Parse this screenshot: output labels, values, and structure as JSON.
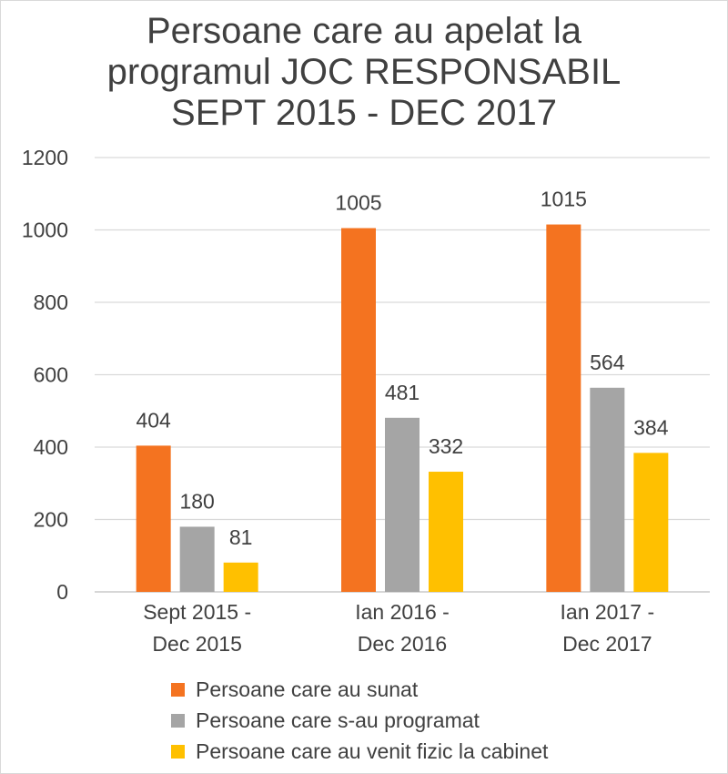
{
  "chart_data": {
    "type": "bar",
    "title": [
      "Persoane care au apelat la",
      "programul JOC RESPONSABIL",
      "SEPT 2015 - DEC  2017"
    ],
    "categories": [
      [
        "Sept 2015 -",
        "Dec 2015"
      ],
      [
        "Ian 2016 -",
        "Dec 2016"
      ],
      [
        "Ian 2017 -",
        "Dec 2017"
      ]
    ],
    "series": [
      {
        "name": "Persoane care au sunat",
        "values": [
          404,
          1005,
          1015
        ],
        "color": "#f47320"
      },
      {
        "name": "Persoane care s-au programat",
        "values": [
          180,
          481,
          564
        ],
        "color": "#a5a5a5"
      },
      {
        "name": "Persoane care au venit fizic la cabinet",
        "values": [
          81,
          332,
          384
        ],
        "color": "#ffc000"
      }
    ],
    "ylim": [
      0,
      1200
    ],
    "yticks": [
      0,
      200,
      400,
      600,
      800,
      1000,
      1200
    ],
    "grid": true,
    "data_labels": true,
    "legend_position": "bottom"
  }
}
